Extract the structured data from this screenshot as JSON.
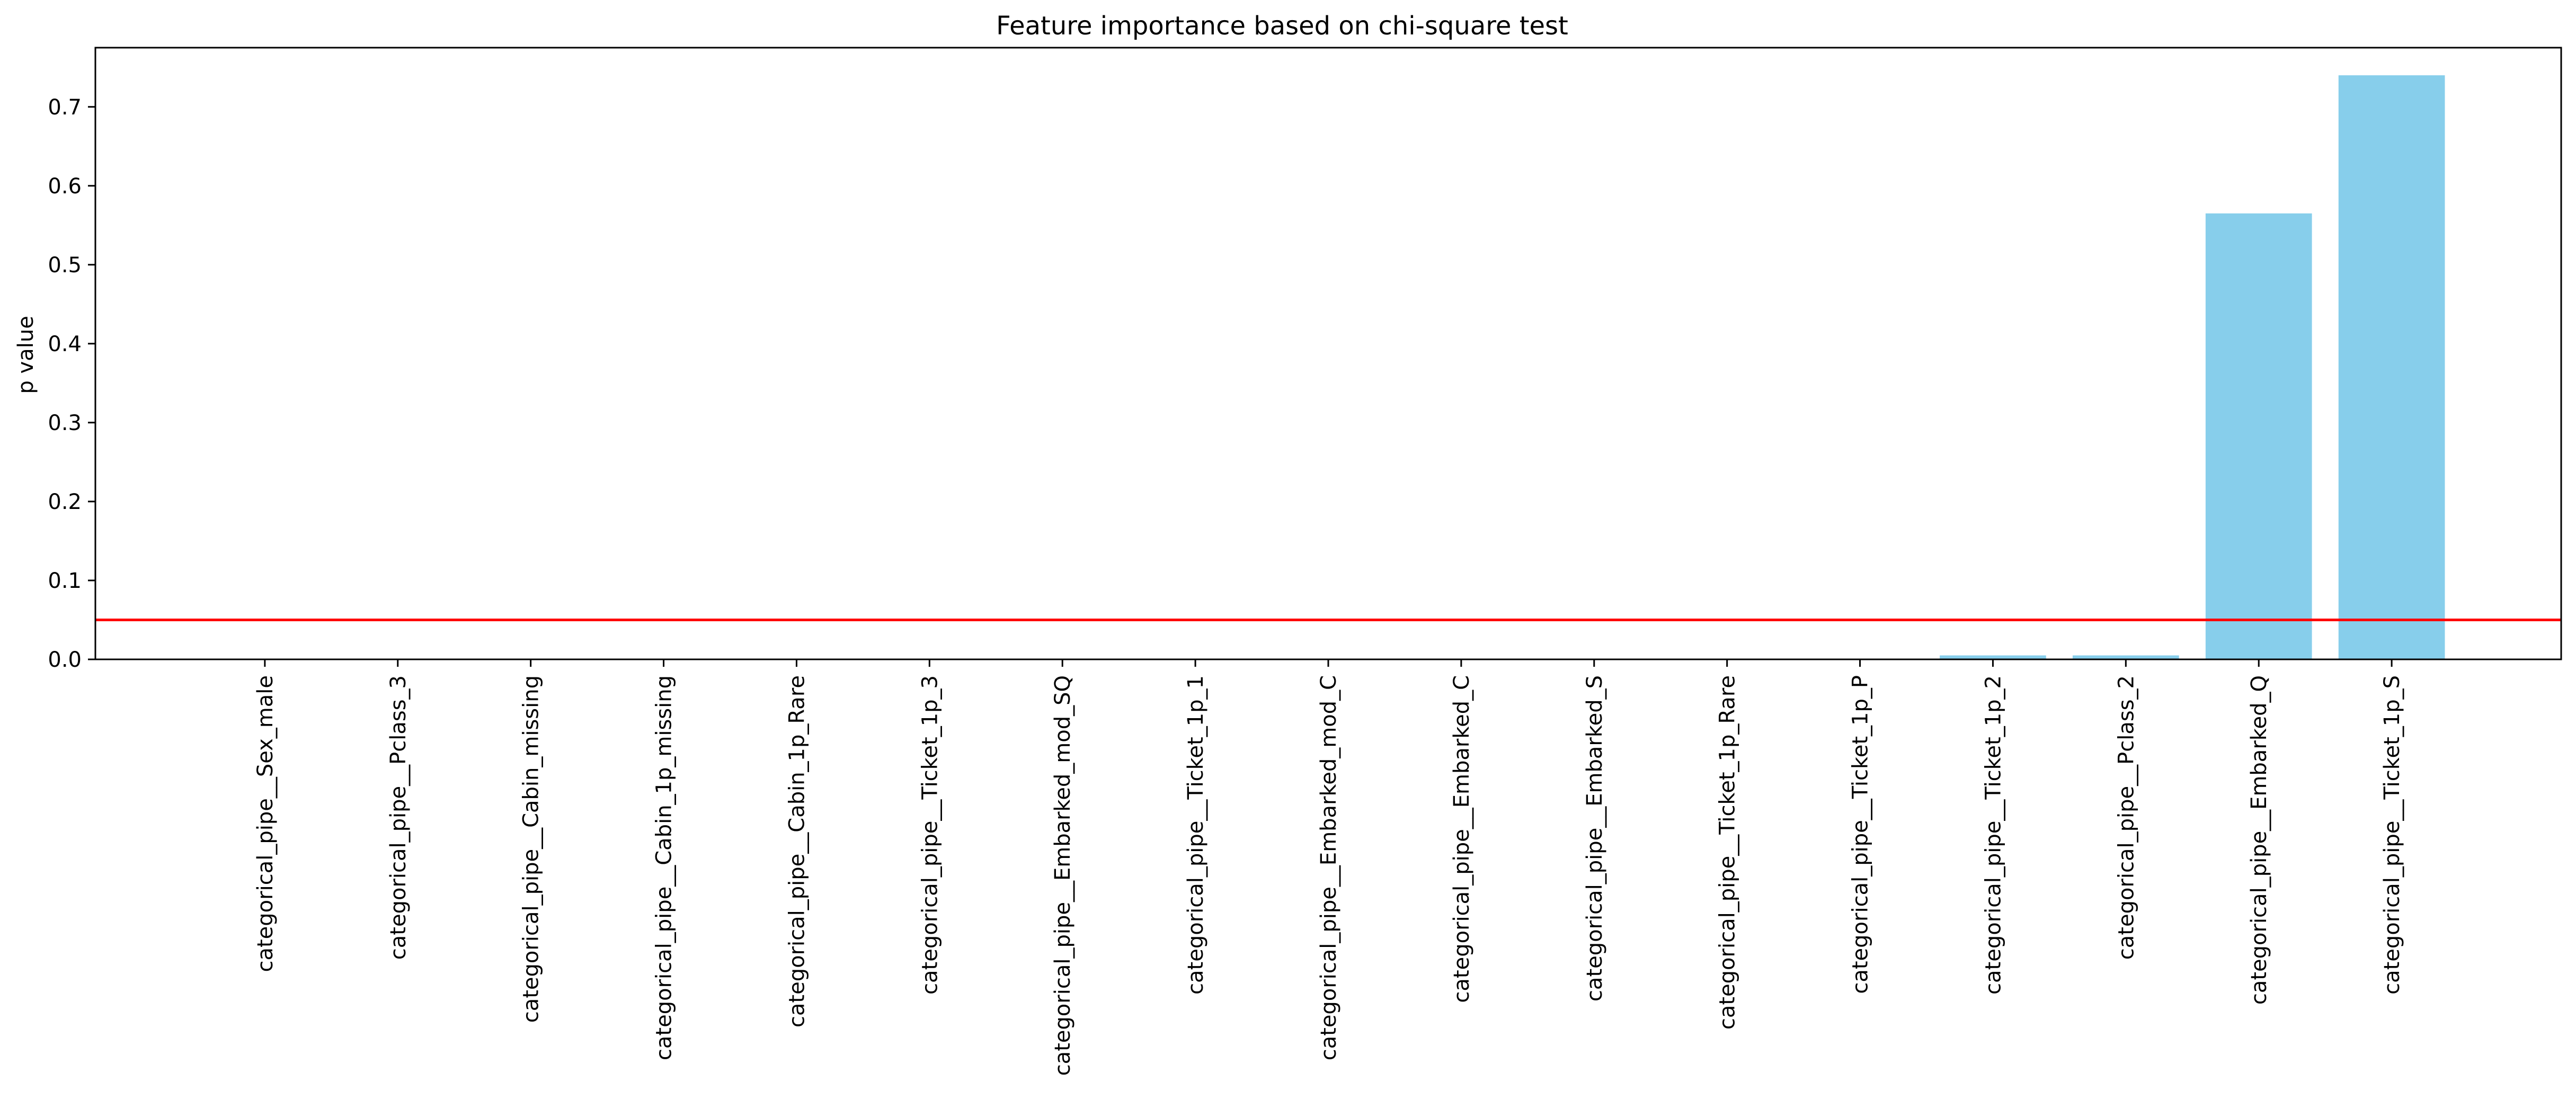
{
  "chart_data": {
    "type": "bar",
    "title": "Feature importance based on chi-square test",
    "xlabel": "",
    "ylabel": "p value",
    "categories": [
      "categorical_pipe__Sex_male",
      "categorical_pipe__Pclass_3",
      "categorical_pipe__Cabin_missing",
      "categorical_pipe__Cabin_1p_missing",
      "categorical_pipe__Cabin_1p_Rare",
      "categorical_pipe__Ticket_1p_3",
      "categorical_pipe__Embarked_mod_SQ",
      "categorical_pipe__Ticket_1p_1",
      "categorical_pipe__Embarked_mod_C",
      "categorical_pipe__Embarked_C",
      "categorical_pipe__Embarked_S",
      "categorical_pipe__Ticket_1p_Rare",
      "categorical_pipe__Ticket_1p_P",
      "categorical_pipe__Ticket_1p_2",
      "categorical_pipe__Pclass_2",
      "categorical_pipe__Embarked_Q",
      "categorical_pipe__Ticket_1p_S"
    ],
    "values": [
      0.0,
      0.0,
      0.0,
      0.0,
      0.0,
      0.0,
      0.0,
      0.0,
      0.0,
      0.0,
      0.0,
      0.0,
      0.0,
      0.005,
      0.005,
      0.565,
      0.74
    ],
    "ylim": [
      0,
      0.775
    ],
    "yticks": [
      "0.0",
      "0.1",
      "0.2",
      "0.3",
      "0.4",
      "0.5",
      "0.6",
      "0.7"
    ],
    "threshold": 0.05,
    "bar_color": "#87CEEB",
    "threshold_color": "#ff0000",
    "grid": false,
    "legend": "none"
  }
}
